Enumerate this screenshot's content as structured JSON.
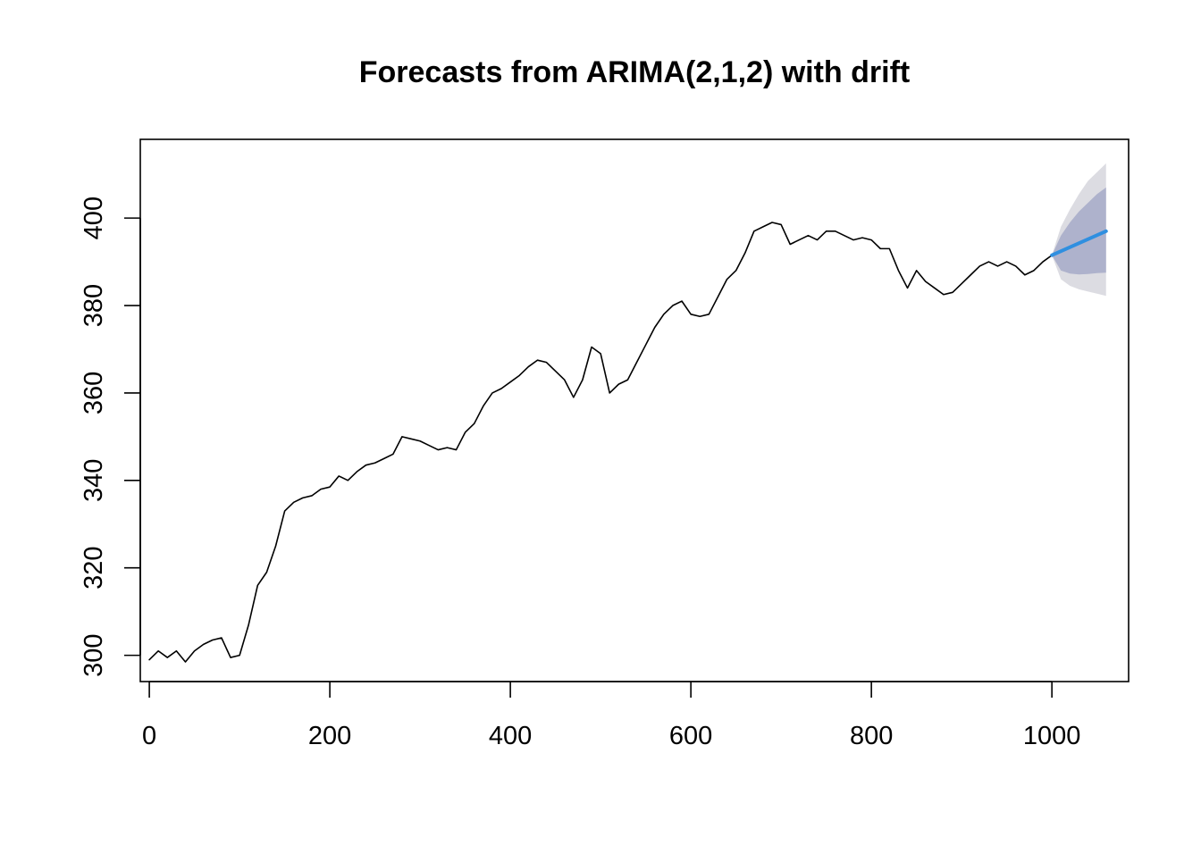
{
  "chart_data": {
    "type": "line",
    "title": "Forecasts from ARIMA(2,1,2) with drift",
    "xlabel": "",
    "ylabel": "",
    "xlim": [
      -10,
      1085
    ],
    "ylim": [
      294,
      418
    ],
    "x_ticks": [
      0,
      200,
      400,
      600,
      800,
      1000
    ],
    "y_ticks": [
      300,
      320,
      340,
      360,
      380,
      400
    ],
    "grid": false,
    "legend": "none",
    "colors": {
      "observed": "#000000",
      "forecast": "#2f8fe0",
      "interval_80": "#aeb2cc",
      "interval_95": "#dcdce2"
    },
    "series": [
      {
        "role": "observed",
        "x": [
          0,
          10,
          20,
          30,
          40,
          50,
          60,
          70,
          80,
          90,
          100,
          110,
          120,
          130,
          140,
          150,
          160,
          170,
          180,
          190,
          200,
          210,
          220,
          230,
          240,
          250,
          260,
          270,
          280,
          290,
          300,
          310,
          320,
          330,
          340,
          350,
          360,
          370,
          380,
          390,
          400,
          410,
          420,
          430,
          440,
          450,
          460,
          470,
          480,
          490,
          500,
          510,
          520,
          530,
          540,
          550,
          560,
          570,
          580,
          590,
          600,
          610,
          620,
          630,
          640,
          650,
          660,
          670,
          680,
          690,
          700,
          710,
          720,
          730,
          740,
          750,
          760,
          770,
          780,
          790,
          800,
          810,
          820,
          830,
          840,
          850,
          860,
          870,
          880,
          890,
          900,
          910,
          920,
          930,
          940,
          950,
          960,
          970,
          980,
          990,
          1000
        ],
        "y": [
          299,
          301,
          299.5,
          301,
          298.5,
          301,
          302.5,
          303.5,
          304,
          299.5,
          300,
          307,
          316,
          319,
          325,
          333,
          335,
          336,
          336.5,
          338,
          338.5,
          341,
          340,
          342,
          343.5,
          344,
          345,
          346,
          350,
          349.5,
          349,
          348,
          347,
          347.5,
          347,
          351,
          353,
          357,
          360,
          361,
          362.5,
          364,
          366,
          367.5,
          367,
          365,
          363,
          359,
          363,
          370.5,
          369,
          360,
          362,
          363,
          367,
          371,
          375,
          378,
          380,
          381,
          378,
          377.5,
          378,
          382,
          386,
          388,
          392,
          397,
          398,
          399,
          398.5,
          394,
          395,
          396,
          395,
          397,
          397,
          396,
          395,
          395.5,
          395,
          393,
          393,
          388,
          384,
          388,
          385.5,
          384,
          382.5,
          383,
          385,
          387,
          389,
          390,
          389,
          390,
          389,
          387,
          388,
          390,
          391.5
        ]
      },
      {
        "role": "forecast",
        "x": [
          1000,
          1060
        ],
        "y": [
          391.5,
          397
        ]
      }
    ],
    "intervals": [
      {
        "level": 95,
        "x": [
          1000,
          1010,
          1020,
          1030,
          1040,
          1050,
          1060
        ],
        "lower": [
          391.5,
          386,
          384.5,
          383.7,
          383.2,
          382.7,
          382.2
        ],
        "upper": [
          391.5,
          398,
          402,
          405.5,
          408.5,
          410.5,
          412.5
        ]
      },
      {
        "level": 80,
        "x": [
          1000,
          1010,
          1020,
          1030,
          1040,
          1050,
          1060
        ],
        "lower": [
          391.5,
          388,
          387.3,
          387.1,
          387.2,
          387.4,
          387.5
        ],
        "upper": [
          391.5,
          396,
          399,
          401.5,
          403.5,
          405.5,
          407
        ]
      }
    ]
  }
}
